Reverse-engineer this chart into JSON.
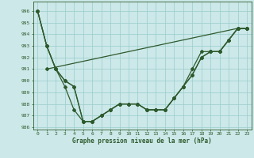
{
  "title": "Graphe pression niveau de la mer (hPa)",
  "bg_color": "#cce8e8",
  "grid_color": "#99cccc",
  "line_color": "#2d5a2d",
  "xlim": [
    -0.5,
    23.5
  ],
  "ylim": [
    985.8,
    996.8
  ],
  "yticks": [
    986,
    987,
    988,
    989,
    990,
    991,
    992,
    993,
    994,
    995,
    996
  ],
  "xticks": [
    0,
    1,
    2,
    3,
    4,
    5,
    6,
    7,
    8,
    9,
    10,
    11,
    12,
    13,
    14,
    15,
    16,
    17,
    18,
    19,
    20,
    21,
    22,
    23
  ],
  "series1": [
    996,
    993,
    991.0,
    989.5,
    987.5,
    986.5,
    986.5,
    987.0,
    987.5,
    988.0,
    988.0,
    988.0,
    987.5,
    987.5,
    987.5,
    988.5,
    989.5,
    990.5,
    992.0,
    992.5,
    992.5,
    993.5,
    994.5,
    994.5
  ],
  "series2": [
    996,
    993,
    991.0,
    990.0,
    989.5,
    986.5,
    986.5,
    987.0,
    987.5,
    988.0,
    988.0,
    988.0,
    987.5,
    987.5,
    987.5,
    988.5,
    989.5,
    990.5,
    992.0,
    992.5,
    992.5,
    993.5,
    994.5,
    994.5
  ],
  "series3": [
    996,
    993,
    991.0,
    990.0,
    989.5,
    986.5,
    986.5,
    987.0,
    987.5,
    988.0,
    988.0,
    988.0,
    987.5,
    987.5,
    987.5,
    988.5,
    989.5,
    991.0,
    992.5,
    992.5,
    992.5,
    993.5,
    994.5,
    994.5
  ],
  "series4": [
    null,
    991.0,
    null,
    null,
    null,
    null,
    null,
    null,
    null,
    null,
    null,
    null,
    null,
    null,
    null,
    null,
    null,
    null,
    null,
    null,
    null,
    null,
    994.5,
    994.5
  ],
  "series4_x": [
    1,
    22,
    23
  ],
  "series4_y": [
    991.0,
    994.5,
    994.5
  ],
  "marker": "D",
  "markersize": 2.0,
  "linewidth": 0.9,
  "tick_fontsize": 4.5,
  "label_fontsize": 5.5
}
